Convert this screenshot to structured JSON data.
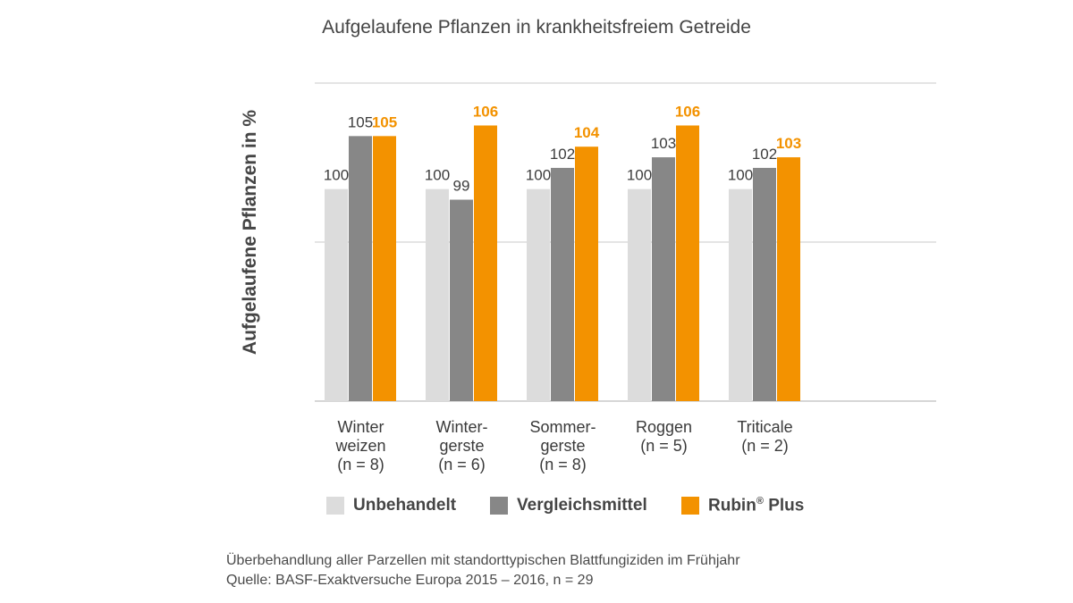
{
  "colors": {
    "unbehandelt": "#dcdcdc",
    "vergleichsmittel": "#878787",
    "rubin": "#f39200",
    "grid": "#c8c8c8",
    "value_text": "#3d3d3d"
  },
  "chart_data": {
    "type": "bar",
    "title": "Aufgelaufene Pflanzen in krankheitsfreiem Getreide",
    "ylabel": "Aufgelaufene Pflanzen in %",
    "xlabel": "",
    "categories": [
      [
        "Winter",
        "weizen",
        "(n = 8)"
      ],
      [
        "Winter-",
        "gerste",
        "(n = 6)"
      ],
      [
        "Sommer-",
        "gerste",
        "(n = 8)"
      ],
      [
        "Roggen",
        "(n = 5)"
      ],
      [
        "Triticale",
        "(n = 2)"
      ]
    ],
    "series": [
      {
        "name": "Unbehandelt",
        "values": [
          100,
          100,
          100,
          100,
          100
        ]
      },
      {
        "name": "Vergleichsmittel",
        "values": [
          105,
          99,
          102,
          103,
          102
        ]
      },
      {
        "name": "Rubin® Plus",
        "values": [
          105,
          106,
          104,
          106,
          103
        ]
      }
    ],
    "ylim": [
      80,
      110
    ],
    "grid": true,
    "legend_placement": "bottom"
  },
  "legend": {
    "unbehandelt": "Unbehandelt",
    "vergleichsmittel": "Vergleichsmittel",
    "rubin_main": "Rubin",
    "rubin_sup": "®",
    "rubin_tail": " Plus"
  },
  "footnote": {
    "line1": "Überbehandlung aller Parzellen mit standorttypischen Blattfungiziden im Frühjahr",
    "line2": "Quelle: BASF-Exaktversuche Europa 2015 – 2016, n = 29"
  }
}
